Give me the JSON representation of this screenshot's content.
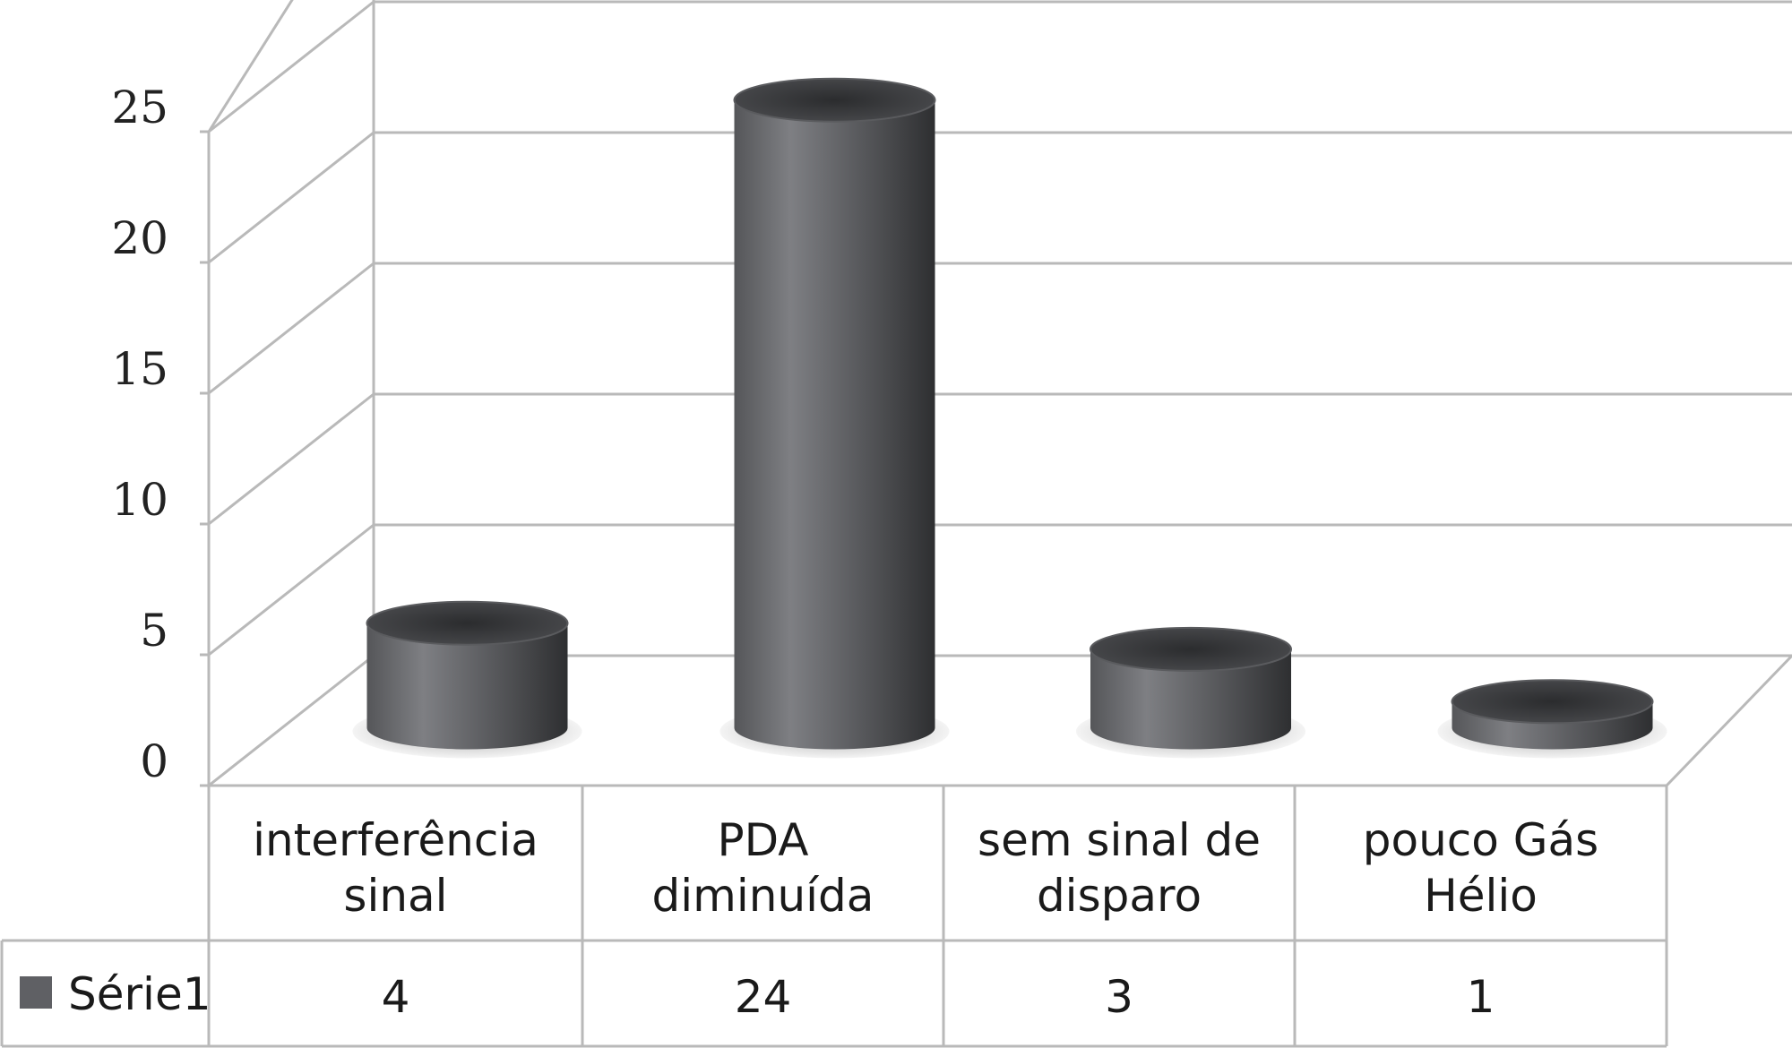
{
  "chart_data": {
    "type": "bar",
    "categories": [
      [
        "interferência",
        "sinal"
      ],
      [
        "PDA",
        "diminuída"
      ],
      [
        "sem sinal de",
        "disparo"
      ],
      [
        "pouco Gás",
        "Hélio"
      ]
    ],
    "series": [
      {
        "name": "Série1",
        "values": [
          4,
          24,
          3,
          1
        ]
      }
    ],
    "value_labels": [
      "4",
      "24",
      "3",
      "1"
    ],
    "y_ticks": [
      "0",
      "5",
      "10",
      "15",
      "20",
      "25"
    ],
    "ylim": [
      0,
      30
    ],
    "grid": true,
    "legend": "data-table-left",
    "colors": {
      "bar": "#5f6064",
      "bar_highlight": "#7d7e82",
      "bar_top": "#3c3d40",
      "grid": "#b9b9b9"
    }
  }
}
